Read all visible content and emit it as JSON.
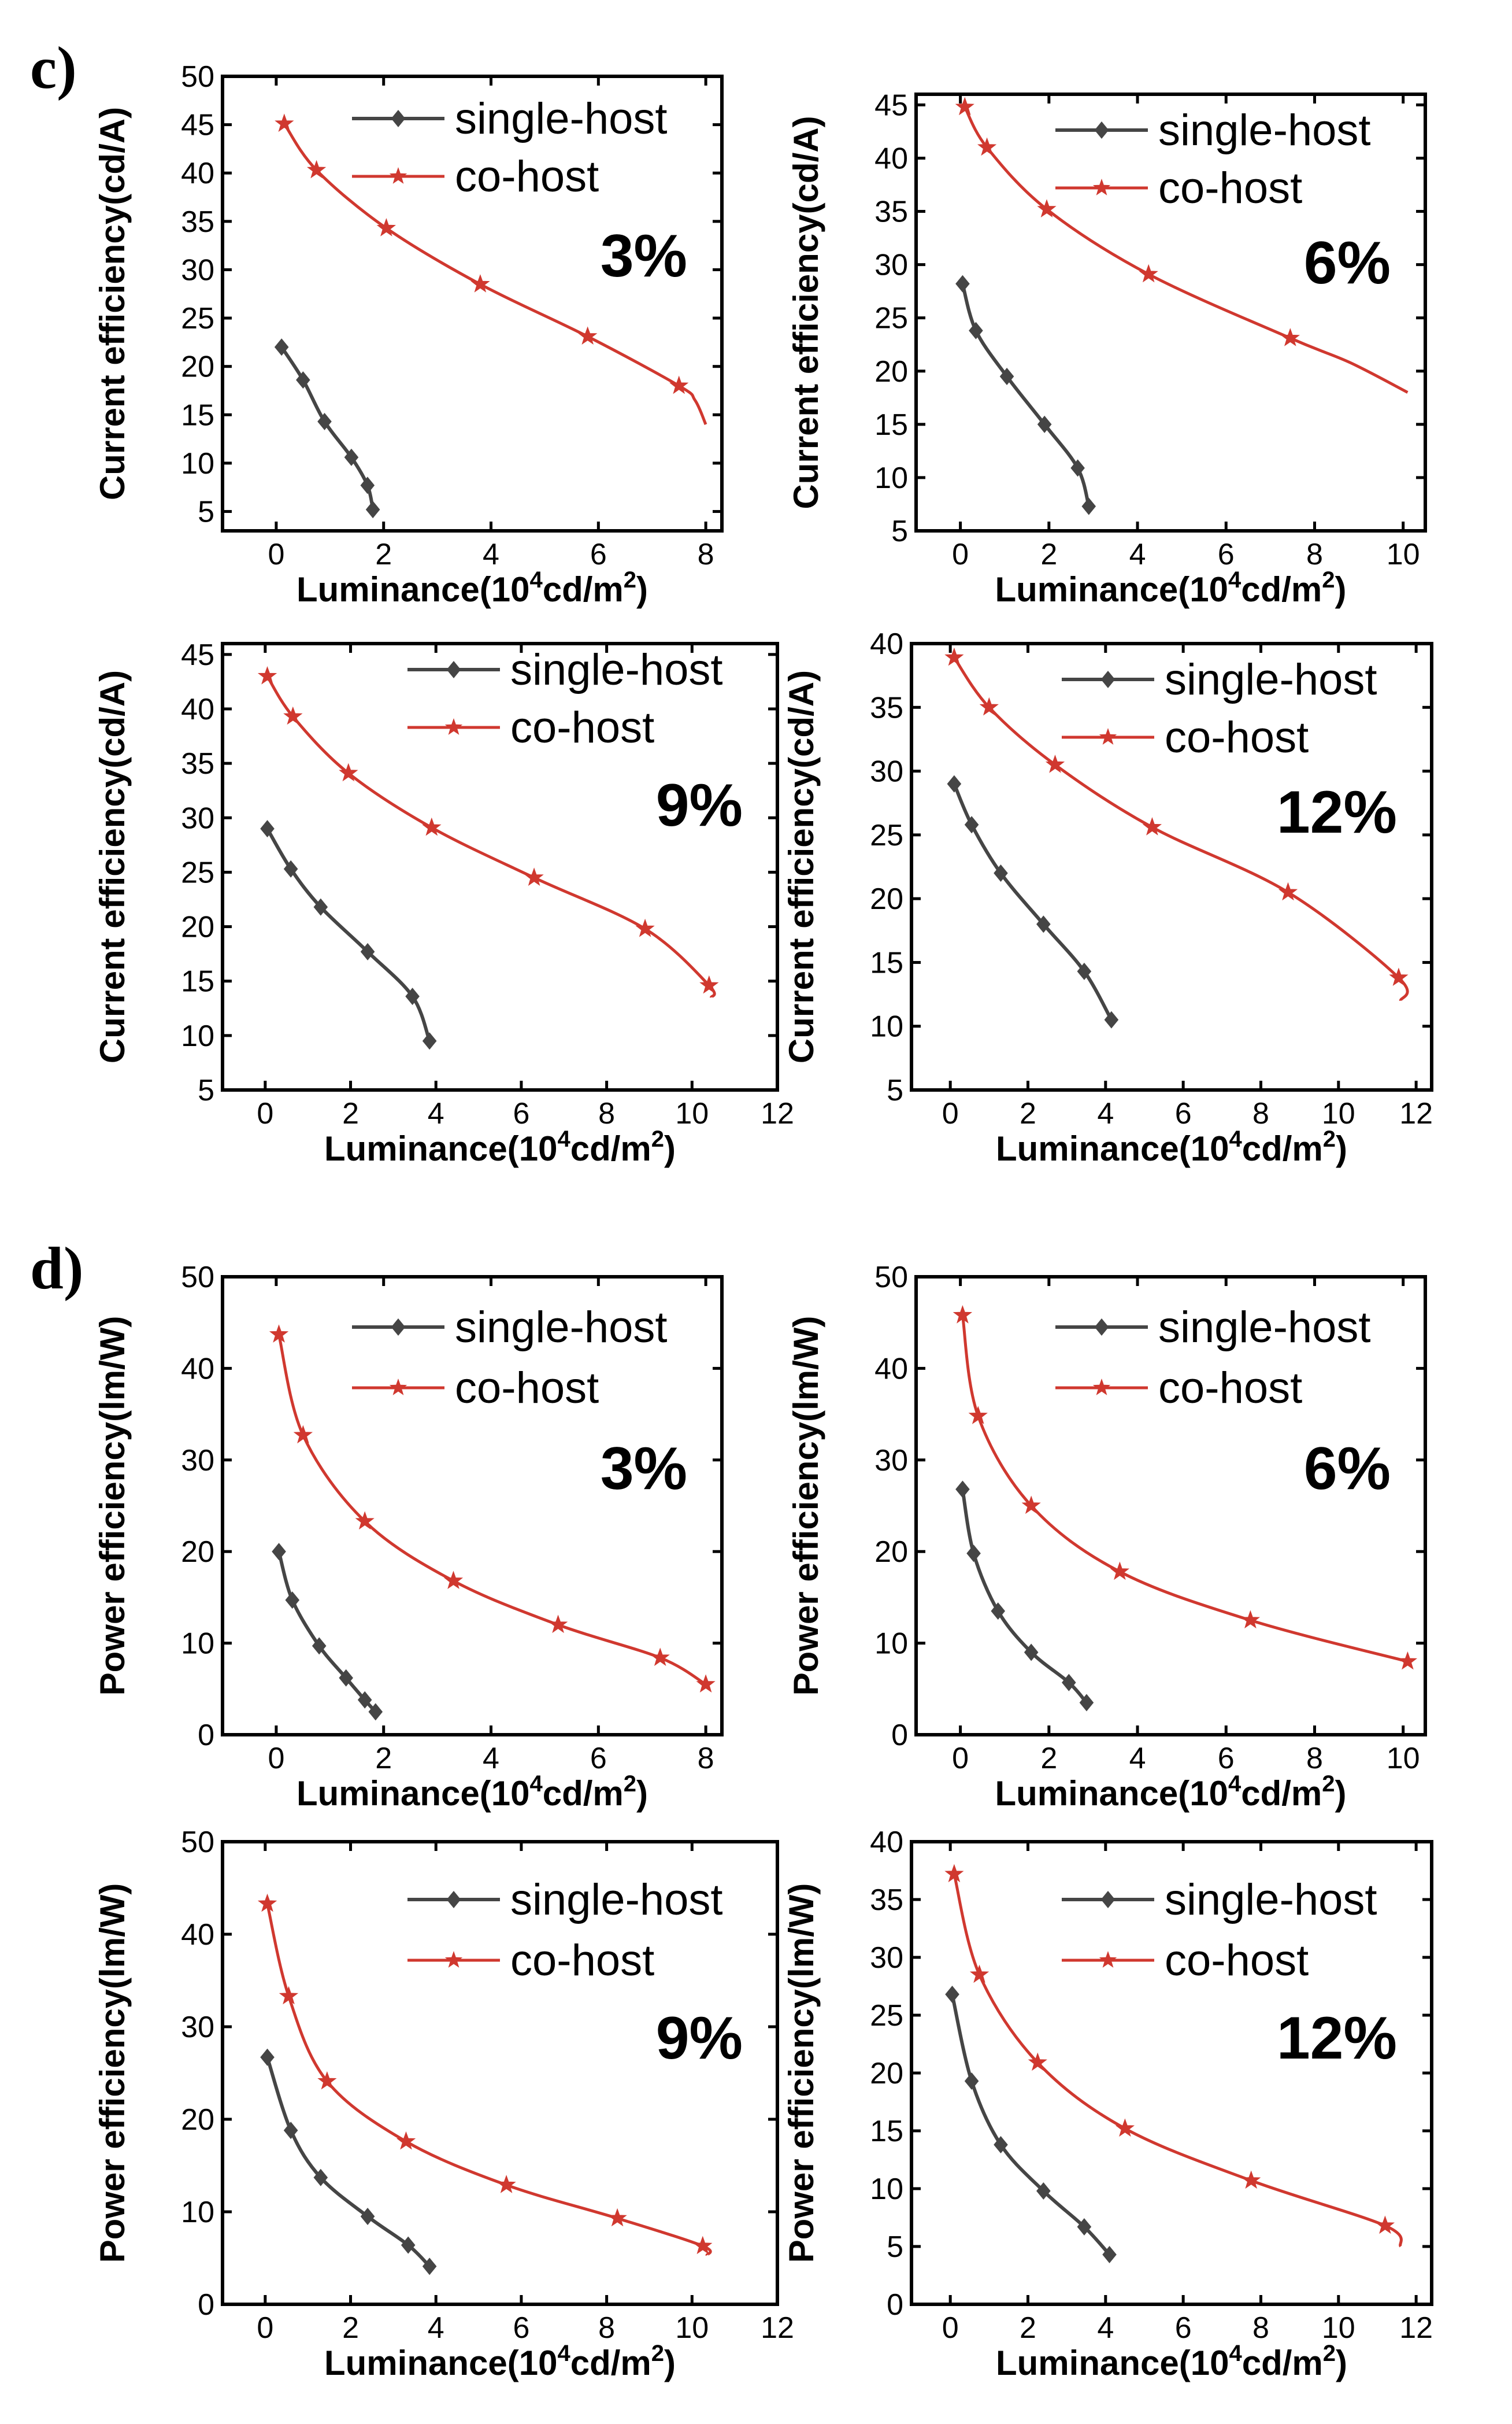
{
  "panel_labels": [
    "c)",
    "d)"
  ],
  "colors": {
    "single": "#454545",
    "co": "#d0382f",
    "axis": "#000000"
  },
  "legend": {
    "single": "single-host",
    "co": "co-host"
  },
  "xlabel": {
    "prefix": "Luminance(10",
    "sup1": "4",
    "mid": "cd/m",
    "sup2": "2",
    "suffix": ")"
  },
  "ylabels": {
    "current": "Current efficiency(cd/A)",
    "power": "Power efficiency(lm/W)"
  },
  "chart_data": [
    {
      "type": "line",
      "group": "c)",
      "concentration": "3%",
      "ylabel": "Current efficiency(cd/A)",
      "xlim": [
        -1,
        8.3
      ],
      "ylim": [
        3,
        50
      ],
      "xticks": [
        0,
        2,
        4,
        6,
        8
      ],
      "yticks": [
        5,
        10,
        15,
        20,
        25,
        30,
        35,
        40,
        45,
        50
      ],
      "series": [
        {
          "name": "single-host",
          "marker": "diamond",
          "x": [
            0.1,
            0.5,
            0.9,
            1.4,
            1.7,
            1.8
          ],
          "y": [
            22,
            18.6,
            14.3,
            10.6,
            7.7,
            5.2
          ]
        },
        {
          "name": "co-host",
          "marker": "star",
          "x": [
            0.15,
            0.75,
            2.05,
            3.8,
            5.8,
            7.5
          ],
          "y": [
            45.1,
            40.3,
            34.3,
            28.5,
            23.1,
            18
          ],
          "tail": [
            [
              7.8,
              16.5
            ],
            [
              8.0,
              14
            ]
          ]
        }
      ]
    },
    {
      "type": "line",
      "group": "c)",
      "concentration": "6%",
      "ylabel": "Current efficiency(cd/A)",
      "xlim": [
        -1,
        10.5
      ],
      "ylim": [
        5,
        46
      ],
      "xticks": [
        0,
        2,
        4,
        6,
        8,
        10
      ],
      "yticks": [
        5,
        10,
        15,
        20,
        25,
        30,
        35,
        40,
        45
      ],
      "series": [
        {
          "name": "single-host",
          "marker": "diamond",
          "x": [
            0.05,
            0.35,
            1.05,
            1.9,
            2.65,
            2.9
          ],
          "y": [
            28.2,
            23.8,
            19.5,
            15,
            10.9,
            7.3
          ]
        },
        {
          "name": "co-host",
          "marker": "star",
          "x": [
            0.1,
            0.6,
            1.95,
            4.25,
            7.45
          ],
          "y": [
            44.8,
            41,
            35.2,
            29.1,
            23.1
          ],
          "tail": [
            [
              8.8,
              20.8
            ],
            [
              10.1,
              18
            ]
          ]
        }
      ]
    },
    {
      "type": "line",
      "group": "c)",
      "concentration": "9%",
      "ylabel": "Current efficiency(cd/A)",
      "xlim": [
        -1,
        12
      ],
      "ylim": [
        5,
        46
      ],
      "xticks": [
        0,
        2,
        4,
        6,
        8,
        10,
        12
      ],
      "yticks": [
        5,
        10,
        15,
        20,
        25,
        30,
        35,
        40,
        45
      ],
      "series": [
        {
          "name": "single-host",
          "marker": "diamond",
          "x": [
            0.05,
            0.6,
            1.3,
            2.4,
            3.45,
            3.85
          ],
          "y": [
            29,
            25.3,
            21.8,
            17.7,
            13.6,
            9.5
          ]
        },
        {
          "name": "co-host",
          "marker": "star",
          "x": [
            0.05,
            0.65,
            1.95,
            3.9,
            6.3,
            8.9,
            10.4
          ],
          "y": [
            43,
            39.3,
            34.1,
            29.1,
            24.5,
            19.8,
            14.6
          ],
          "tail": [
            [
              10.45,
              13.5
            ]
          ]
        }
      ]
    },
    {
      "type": "line",
      "group": "c)",
      "concentration": "12%",
      "ylabel": "Current efficiency(cd/A)",
      "xlim": [
        -1,
        12.4
      ],
      "ylim": [
        5,
        40
      ],
      "xticks": [
        0,
        2,
        4,
        6,
        8,
        10,
        12
      ],
      "yticks": [
        5,
        10,
        15,
        20,
        25,
        30,
        35,
        40
      ],
      "series": [
        {
          "name": "single-host",
          "marker": "diamond",
          "x": [
            0.1,
            0.55,
            1.3,
            2.4,
            3.45,
            4.15
          ],
          "y": [
            29,
            25.8,
            22,
            18,
            14.3,
            10.5
          ]
        },
        {
          "name": "co-host",
          "marker": "star",
          "x": [
            0.1,
            1.0,
            2.7,
            5.2,
            8.7,
            11.55
          ],
          "y": [
            38.9,
            35,
            30.5,
            25.6,
            20.5,
            13.8
          ],
          "tail": [
            [
              11.6,
              12
            ]
          ]
        }
      ]
    },
    {
      "type": "line",
      "group": "d)",
      "concentration": "3%",
      "ylabel": "Power efficiency(lm/W)",
      "xlim": [
        -1,
        8.3
      ],
      "ylim": [
        0,
        50
      ],
      "xticks": [
        0,
        2,
        4,
        6,
        8
      ],
      "yticks": [
        0,
        10,
        20,
        30,
        40,
        50
      ],
      "series": [
        {
          "name": "single-host",
          "marker": "diamond",
          "x": [
            0.05,
            0.3,
            0.8,
            1.3,
            1.65,
            1.85
          ],
          "y": [
            20,
            14.7,
            9.7,
            6.2,
            3.8,
            2.5
          ]
        },
        {
          "name": "co-host",
          "marker": "star",
          "x": [
            0.05,
            0.5,
            1.65,
            3.3,
            5.25,
            7.15,
            8.0
          ],
          "y": [
            43.7,
            32.7,
            23.3,
            16.8,
            12,
            8.4,
            5.5
          ]
        }
      ]
    },
    {
      "type": "line",
      "group": "d)",
      "concentration": "6%",
      "ylabel": "Power efficiency(lm/W)",
      "xlim": [
        -1,
        10.5
      ],
      "ylim": [
        0,
        50
      ],
      "xticks": [
        0,
        2,
        4,
        6,
        8,
        10
      ],
      "yticks": [
        0,
        10,
        20,
        30,
        40,
        50
      ],
      "series": [
        {
          "name": "single-host",
          "marker": "diamond",
          "x": [
            0.05,
            0.3,
            0.85,
            1.6,
            2.45,
            2.85
          ],
          "y": [
            26.8,
            19.8,
            13.5,
            9,
            5.7,
            3.5
          ]
        },
        {
          "name": "co-host",
          "marker": "star",
          "x": [
            0.05,
            0.4,
            1.6,
            3.6,
            6.55,
            10.1
          ],
          "y": [
            45.8,
            34.8,
            25,
            17.8,
            12.5,
            8
          ]
        }
      ]
    },
    {
      "type": "line",
      "group": "d)",
      "concentration": "9%",
      "ylabel": "Power efficiency(lm/W)",
      "xlim": [
        -1,
        12
      ],
      "ylim": [
        0,
        50
      ],
      "xticks": [
        0,
        2,
        4,
        6,
        8,
        10,
        12
      ],
      "yticks": [
        0,
        10,
        20,
        30,
        40,
        50
      ],
      "series": [
        {
          "name": "single-host",
          "marker": "diamond",
          "x": [
            0.05,
            0.6,
            1.3,
            2.4,
            3.35,
            3.85
          ],
          "y": [
            26.7,
            18.8,
            13.7,
            9.5,
            6.4,
            4.1
          ]
        },
        {
          "name": "co-host",
          "marker": "star",
          "x": [
            0.05,
            0.55,
            1.45,
            3.3,
            5.65,
            8.25,
            10.25
          ],
          "y": [
            43.3,
            33.3,
            24.1,
            17.6,
            12.9,
            9.3,
            6.3
          ],
          "tail": [
            [
              10.35,
              5.3
            ]
          ]
        }
      ]
    },
    {
      "type": "line",
      "group": "d)",
      "concentration": "12%",
      "ylabel": "Power efficiency(lm/W)",
      "xlim": [
        -1,
        12.4
      ],
      "ylim": [
        0,
        40
      ],
      "xticks": [
        0,
        2,
        4,
        6,
        8,
        10,
        12
      ],
      "yticks": [
        0,
        5,
        10,
        15,
        20,
        25,
        30,
        35,
        40
      ],
      "series": [
        {
          "name": "single-host",
          "marker": "diamond",
          "x": [
            0.05,
            0.55,
            1.3,
            2.4,
            3.45,
            4.1
          ],
          "y": [
            26.8,
            19.3,
            13.8,
            9.8,
            6.7,
            4.3
          ]
        },
        {
          "name": "co-host",
          "marker": "star",
          "x": [
            0.1,
            0.75,
            2.25,
            4.5,
            7.75,
            11.2
          ],
          "y": [
            37.2,
            28.5,
            20.9,
            15.2,
            10.7,
            6.8
          ],
          "tail": [
            [
              11.6,
              5
            ]
          ]
        }
      ]
    }
  ]
}
